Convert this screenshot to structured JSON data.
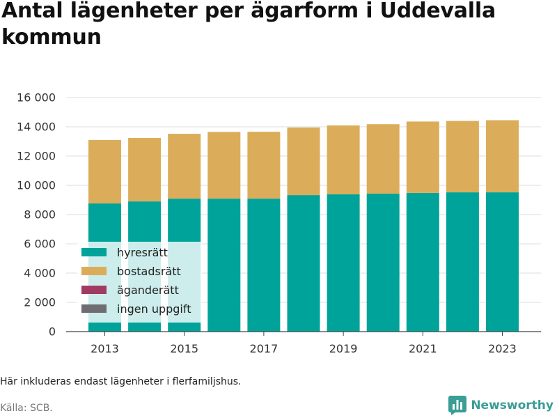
{
  "chart_data": {
    "type": "bar",
    "stacked": true,
    "title": "Antal lägenheter per ägarform i Uddevalla kommun",
    "categories": [
      2013,
      2014,
      2015,
      2016,
      2017,
      2018,
      2019,
      2020,
      2021,
      2022,
      2023
    ],
    "x_tick_labels": [
      "2013",
      "2015",
      "2017",
      "2019",
      "2021",
      "2023"
    ],
    "y_ticks": [
      0,
      2000,
      4000,
      6000,
      8000,
      10000,
      12000,
      14000,
      16000
    ],
    "y_tick_labels": [
      "0",
      "2 000",
      "4 000",
      "6 000",
      "8 000",
      "10 000",
      "12 000",
      "14 000",
      "16 000"
    ],
    "ylim": [
      0,
      16000
    ],
    "grid": true,
    "legend_position": "bottom-left",
    "series": [
      {
        "name": "hyresrätt",
        "color": "#00A39A",
        "values": [
          8760,
          8900,
          9090,
          9090,
          9090,
          9330,
          9380,
          9430,
          9480,
          9520,
          9520
        ]
      },
      {
        "name": "bostadsrätt",
        "color": "#DBAD5A",
        "values": [
          4340,
          4340,
          4430,
          4560,
          4570,
          4620,
          4710,
          4750,
          4880,
          4880,
          4930
        ]
      },
      {
        "name": "äganderätt",
        "color": "#A23B62",
        "values": [
          0,
          0,
          0,
          0,
          0,
          0,
          0,
          0,
          0,
          0,
          0
        ]
      },
      {
        "name": "ingen uppgift",
        "color": "#6E6E72",
        "values": [
          0,
          0,
          0,
          0,
          0,
          0,
          0,
          0,
          0,
          0,
          0
        ]
      }
    ]
  },
  "note": "Här inkluderas endast lägenheter i flerfamiljshus.",
  "source": "Källa: SCB.",
  "brand": {
    "name": "Newsworthy",
    "icon": "newsworthy-logo-icon",
    "color": "#3A9D96"
  }
}
